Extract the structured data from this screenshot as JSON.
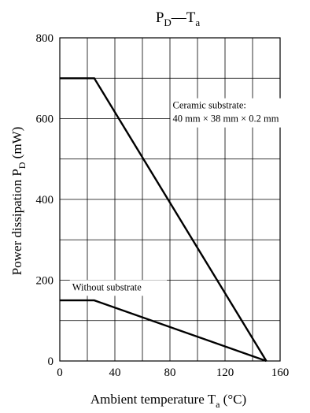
{
  "chart_data": {
    "type": "line",
    "title": {
      "main": "P",
      "main_sub": "D",
      "sep": "—",
      "var": "T",
      "var_sub": "a"
    },
    "xlabel": {
      "pre": "Ambient temperature  T",
      "sub": "a",
      "post": " (°C)"
    },
    "ylabel": {
      "pre": "Power dissipation  P",
      "sub": "D",
      "post": " (mW)"
    },
    "xlim": [
      0,
      160
    ],
    "ylim": [
      0,
      800
    ],
    "xticks": [
      0,
      40,
      80,
      120,
      160
    ],
    "yticks": [
      0,
      200,
      400,
      600,
      800
    ],
    "x_grid": [
      0,
      20,
      40,
      60,
      80,
      100,
      120,
      140,
      160
    ],
    "y_grid": [
      0,
      100,
      200,
      300,
      400,
      500,
      600,
      700,
      800
    ],
    "grid": true,
    "series": [
      {
        "points": [
          [
            0,
            700
          ],
          [
            25,
            700
          ],
          [
            150,
            0
          ]
        ]
      },
      {
        "points": [
          [
            0,
            150
          ],
          [
            25,
            150
          ],
          [
            150,
            0
          ]
        ]
      }
    ],
    "annotations": [
      {
        "lines": [
          "Ceramic substrate:",
          "40 mm × 38 mm × 0.2 mm"
        ],
        "x": 82,
        "y": 625
      },
      {
        "lines": [
          "Without substrate"
        ],
        "x": 9,
        "y": 175
      }
    ]
  }
}
